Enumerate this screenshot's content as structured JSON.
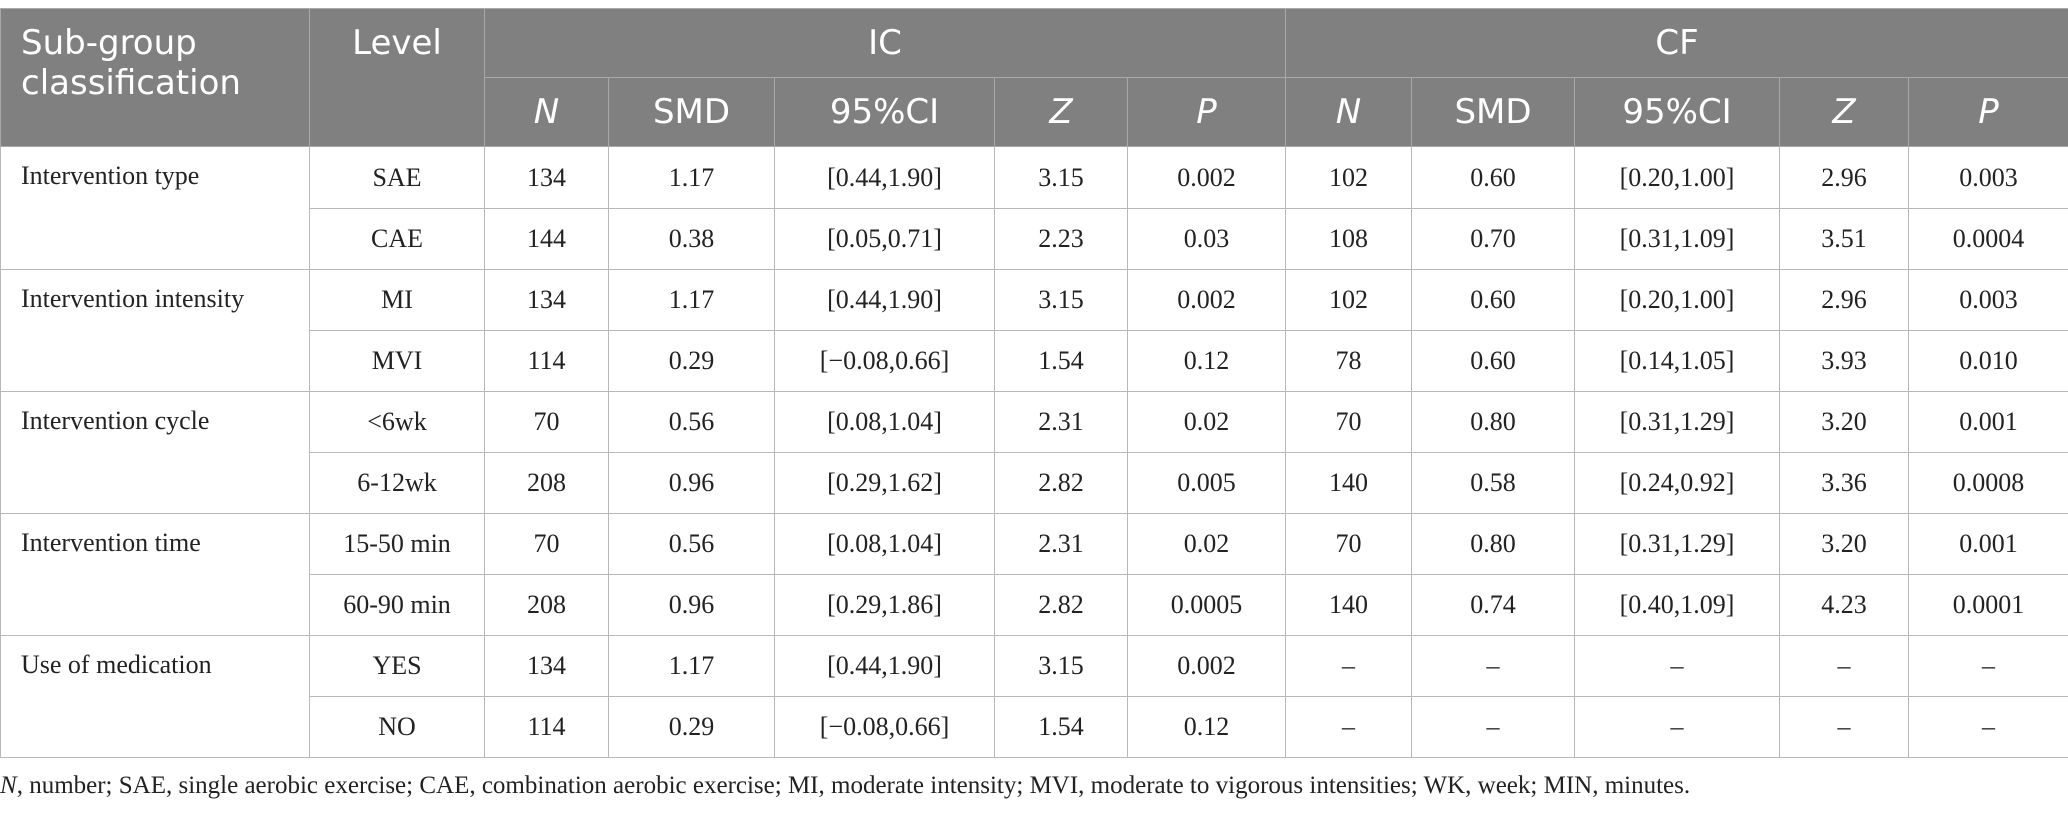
{
  "header": {
    "subgroup": "Sub-group classification",
    "level": "Level",
    "ic": "IC",
    "cf": "CF",
    "columns": [
      "N",
      "SMD",
      "95%CI",
      "Z",
      "P"
    ]
  },
  "rows": [
    {
      "group": "Intervention type",
      "level": "SAE",
      "ic": [
        "134",
        "1.17",
        "[0.44,1.90]",
        "3.15",
        "0.002"
      ],
      "cf": [
        "102",
        "0.60",
        "[0.20,1.00]",
        "2.96",
        "0.003"
      ]
    },
    {
      "group": "",
      "level": "CAE",
      "ic": [
        "144",
        "0.38",
        "[0.05,0.71]",
        "2.23",
        "0.03"
      ],
      "cf": [
        "108",
        "0.70",
        "[0.31,1.09]",
        "3.51",
        "0.0004"
      ]
    },
    {
      "group": "Intervention intensity",
      "level": "MI",
      "ic": [
        "134",
        "1.17",
        "[0.44,1.90]",
        "3.15",
        "0.002"
      ],
      "cf": [
        "102",
        "0.60",
        "[0.20,1.00]",
        "2.96",
        "0.003"
      ]
    },
    {
      "group": "",
      "level": "MVI",
      "ic": [
        "114",
        "0.29",
        "[−0.08,0.66]",
        "1.54",
        "0.12"
      ],
      "cf": [
        "78",
        "0.60",
        "[0.14,1.05]",
        "3.93",
        "0.010"
      ]
    },
    {
      "group": "Intervention cycle",
      "level": "<6wk",
      "ic": [
        "70",
        "0.56",
        "[0.08,1.04]",
        "2.31",
        "0.02"
      ],
      "cf": [
        "70",
        "0.80",
        "[0.31,1.29]",
        "3.20",
        "0.001"
      ]
    },
    {
      "group": "",
      "level": "6-12wk",
      "ic": [
        "208",
        "0.96",
        "[0.29,1.62]",
        "2.82",
        "0.005"
      ],
      "cf": [
        "140",
        "0.58",
        "[0.24,0.92]",
        "3.36",
        "0.0008"
      ]
    },
    {
      "group": "Intervention time",
      "level": "15-50 min",
      "ic": [
        "70",
        "0.56",
        "[0.08,1.04]",
        "2.31",
        "0.02"
      ],
      "cf": [
        "70",
        "0.80",
        "[0.31,1.29]",
        "3.20",
        "0.001"
      ]
    },
    {
      "group": "",
      "level": "60-90 min",
      "ic": [
        "208",
        "0.96",
        "[0.29,1.86]",
        "2.82",
        "0.0005"
      ],
      "cf": [
        "140",
        "0.74",
        "[0.40,1.09]",
        "4.23",
        "0.0001"
      ]
    },
    {
      "group": "Use of medication",
      "level": "YES",
      "ic": [
        "134",
        "1.17",
        "[0.44,1.90]",
        "3.15",
        "0.002"
      ],
      "cf": [
        "–",
        "–",
        "–",
        "–",
        "–"
      ]
    },
    {
      "group": "",
      "level": "NO",
      "ic": [
        "114",
        "0.29",
        "[−0.08,0.66]",
        "1.54",
        "0.12"
      ],
      "cf": [
        "–",
        "–",
        "–",
        "–",
        "–"
      ]
    }
  ],
  "footnote": {
    "n_label": "N",
    "text": ", number; SAE, single aerobic exercise; CAE, combination aerobic exercise; MI, moderate intensity; MVI, moderate to vigorous intensities; WK, week; MIN, minutes."
  }
}
